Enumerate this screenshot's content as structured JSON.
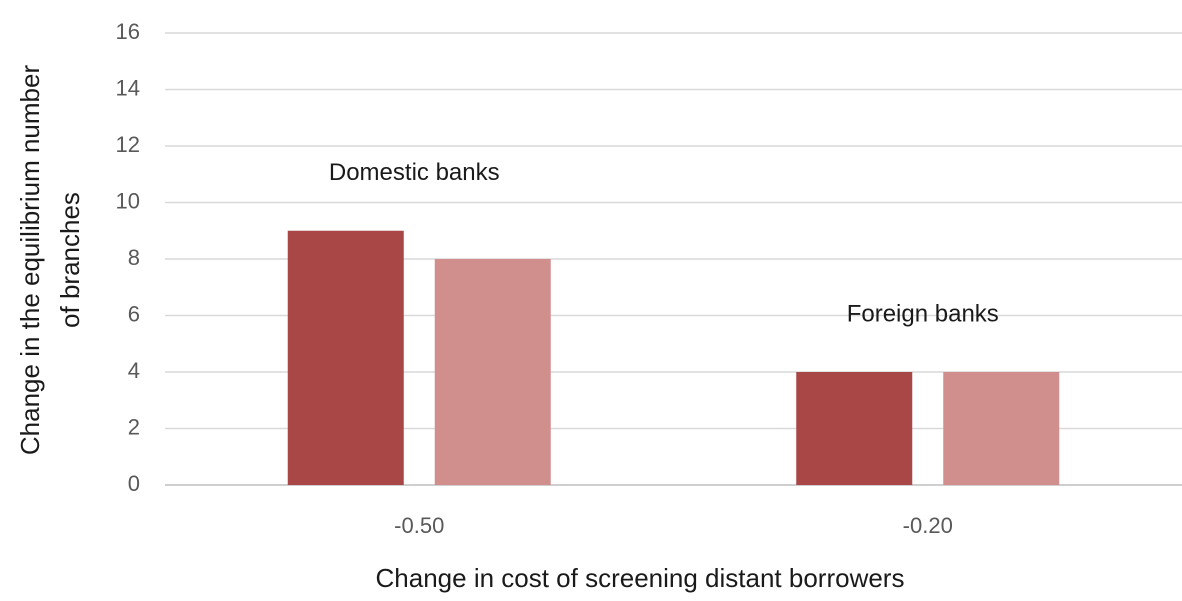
{
  "chart_data": {
    "type": "bar",
    "categories": [
      "-0.50",
      "-0.20"
    ],
    "series": [
      {
        "color": "#a84745",
        "values": [
          9,
          4
        ]
      },
      {
        "color": "#d08f8d",
        "values": [
          8,
          4
        ]
      }
    ],
    "ylim": [
      0,
      16
    ],
    "yticks": [
      0,
      2,
      4,
      6,
      8,
      10,
      12,
      14,
      16
    ],
    "grid": true,
    "x_label": "Change in cost of screening distant borrowers",
    "y_label": [
      "Change in the equilibrium number",
      "of branches"
    ],
    "annotations": [
      "Domestic banks",
      "Foreign banks"
    ]
  }
}
